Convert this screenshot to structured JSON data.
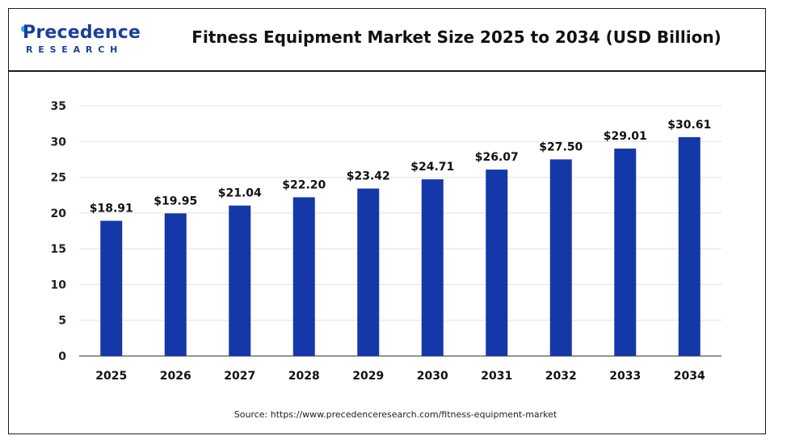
{
  "header": {
    "logo_main": "Precedence",
    "logo_sub": "RESEARCH",
    "title": "Fitness Equipment Market Size 2025 to 2034 (USD Billion)"
  },
  "footer": {
    "source": "Source: https://www.precedenceresearch.com/fitness-equipment-market"
  },
  "colors": {
    "bar": "#1438a8",
    "logo": "#1b3f9a",
    "logo_accent": "#2fb0e3",
    "grid": "#e2e2e2",
    "axis": "#555555"
  },
  "chart_data": {
    "type": "bar",
    "title": "Fitness Equipment Market Size 2025 to 2034 (USD Billion)",
    "xlabel": "",
    "ylabel": "",
    "categories": [
      "2025",
      "2026",
      "2027",
      "2028",
      "2029",
      "2030",
      "2031",
      "2032",
      "2033",
      "2034"
    ],
    "values": [
      18.91,
      19.95,
      21.04,
      22.2,
      23.42,
      24.71,
      26.07,
      27.5,
      29.01,
      30.61
    ],
    "data_labels": [
      "$18.91",
      "$19.95",
      "$21.04",
      "$22.20",
      "$23.42",
      "$24.71",
      "$26.07",
      "$27.50",
      "$29.01",
      "$30.61"
    ],
    "ylim": [
      0,
      35
    ],
    "yticks": [
      0,
      5,
      10,
      15,
      20,
      25,
      30,
      35
    ],
    "grid": true,
    "legend": "none"
  }
}
